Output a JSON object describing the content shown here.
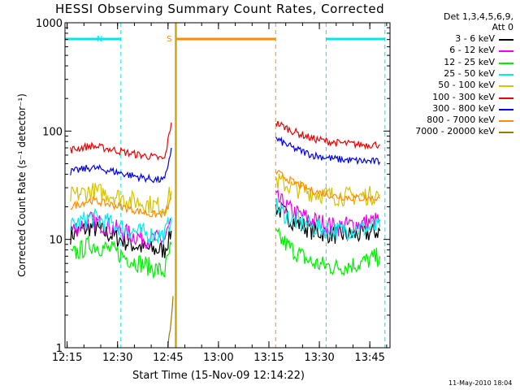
{
  "chart_data": {
    "type": "line",
    "title": "HESSI Observing Summary Count Rates, Corrected",
    "xlabel": "Start Time (15-Nov-09 12:14:22)",
    "ylabel": "Corrected Count Rate (s⁻¹ detector⁻¹)",
    "yscale": "log",
    "ylim": [
      1,
      1000
    ],
    "xlim": [
      "12:14:22",
      "13:51:00"
    ],
    "yticks": [
      "1",
      "10",
      "100",
      "1000"
    ],
    "xticks": [
      "12:15",
      "12:30",
      "12:45",
      "13:00",
      "13:15",
      "13:30",
      "13:45"
    ],
    "legend_header": [
      "Det 1,3,4,5,6,9,",
      "Att 0"
    ],
    "legend_position": "right",
    "flags": [
      {
        "label": "N",
        "color": "#00e5ee",
        "intervals": [
          [
            "12:14:22",
            "12:31:00"
          ],
          [
            "13:32:00",
            "13:49:30"
          ]
        ]
      },
      {
        "label": "S",
        "color": "#ff8c00",
        "intervals": [
          [
            "12:47:30",
            "13:17:00"
          ]
        ]
      }
    ],
    "data_gap": [
      "12:46:30",
      "13:17:00"
    ],
    "series": [
      {
        "name": "3 - 6 keV",
        "color": "#000000",
        "x": [
          "12:16",
          "12:22",
          "12:28",
          "12:34",
          "12:40",
          "12:44",
          "12:46",
          "13:17",
          "13:22",
          "13:28",
          "13:35",
          "13:42",
          "13:48"
        ],
        "y": [
          11,
          13,
          11,
          9,
          8,
          8,
          12,
          20,
          15,
          12,
          11,
          11,
          12
        ]
      },
      {
        "name": "6 - 12 keV",
        "color": "#ee00ee",
        "x": [
          "12:16",
          "12:22",
          "12:28",
          "12:34",
          "12:40",
          "12:44",
          "12:46",
          "13:17",
          "13:22",
          "13:28",
          "13:35",
          "13:42",
          "13:48"
        ],
        "y": [
          12,
          15,
          13,
          11,
          10,
          10,
          15,
          24,
          18,
          15,
          13,
          14,
          15
        ]
      },
      {
        "name": "12 - 25 keV",
        "color": "#00ee00",
        "x": [
          "12:16",
          "12:22",
          "12:28",
          "12:34",
          "12:40",
          "12:44",
          "12:46",
          "13:17",
          "13:22",
          "13:28",
          "13:35",
          "13:42",
          "13:48"
        ],
        "y": [
          7,
          9,
          8,
          6.5,
          5.5,
          5,
          9,
          11,
          8,
          6,
          5.5,
          6,
          7
        ]
      },
      {
        "name": "25 - 50 keV",
        "color": "#00eeee",
        "x": [
          "12:16",
          "12:22",
          "12:28",
          "12:34",
          "12:40",
          "12:44",
          "12:46",
          "13:17",
          "13:22",
          "13:28",
          "13:35",
          "13:42",
          "13:48"
        ],
        "y": [
          13,
          16,
          14,
          12,
          11,
          11,
          16,
          20,
          15,
          13,
          12,
          12.5,
          13
        ]
      },
      {
        "name": "50 - 100 keV",
        "color": "#d6c200",
        "x": [
          "12:16",
          "12:22",
          "12:28",
          "12:34",
          "12:40",
          "12:44",
          "12:46",
          "13:17",
          "13:22",
          "13:28",
          "13:35",
          "13:42",
          "13:48"
        ],
        "y": [
          25,
          28,
          26,
          23,
          21,
          20,
          28,
          35,
          30,
          27,
          25,
          25,
          26
        ]
      },
      {
        "name": "100 - 300 keV",
        "color": "#ee0000",
        "x": [
          "12:16",
          "12:22",
          "12:28",
          "12:34",
          "12:40",
          "12:44",
          "12:46",
          "13:17",
          "13:22",
          "13:28",
          "13:35",
          "13:42",
          "13:48"
        ],
        "y": [
          67,
          73,
          68,
          62,
          58,
          55,
          120,
          120,
          100,
          85,
          78,
          75,
          75
        ]
      },
      {
        "name": "300 - 800 keV",
        "color": "#0000ee",
        "x": [
          "12:16",
          "12:22",
          "12:28",
          "12:34",
          "12:40",
          "12:44",
          "12:46",
          "13:17",
          "13:22",
          "13:28",
          "13:35",
          "13:42",
          "13:48"
        ],
        "y": [
          42,
          46,
          43,
          39,
          36,
          35,
          70,
          85,
          70,
          60,
          55,
          53,
          52
        ]
      },
      {
        "name": "800 - 7000 keV",
        "color": "#ff8c00",
        "x": [
          "12:16",
          "12:22",
          "12:28",
          "12:34",
          "12:40",
          "12:44",
          "12:46",
          "13:17",
          "13:22",
          "13:28",
          "13:35",
          "13:42",
          "13:48"
        ],
        "y": [
          20,
          23,
          21,
          19,
          17,
          17,
          24,
          42,
          34,
          28,
          25,
          24,
          24
        ]
      },
      {
        "name": "7000 - 20000 keV",
        "color": "#a07800",
        "x": [
          "12:45",
          "12:46",
          "12:46:30"
        ],
        "y": [
          1,
          2,
          3
        ]
      }
    ]
  },
  "footer": {
    "date_stamp": "11-May-2010 18:04"
  }
}
